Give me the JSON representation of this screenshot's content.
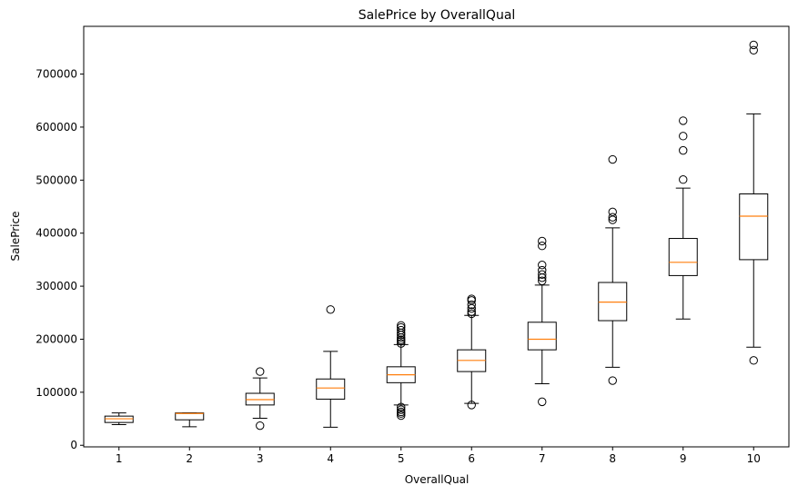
{
  "chart_data": {
    "type": "box",
    "title": "SalePrice by OverallQual",
    "xlabel": "OverallQual",
    "ylabel": "SalePrice",
    "ylim": [
      -3000,
      790000
    ],
    "yticks": [
      0,
      100000,
      200000,
      300000,
      400000,
      500000,
      600000,
      700000
    ],
    "ytick_labels": [
      "0",
      "100000",
      "200000",
      "300000",
      "400000",
      "500000",
      "600000",
      "700000"
    ],
    "categories": [
      "1",
      "2",
      "3",
      "4",
      "5",
      "6",
      "7",
      "8",
      "9",
      "10"
    ],
    "grid": false,
    "colors": {
      "box": "#000000",
      "median": "#ff7f0e"
    },
    "boxes": [
      {
        "category": "1",
        "whisker_low": 39000,
        "q1": 43000,
        "median": 50000,
        "q3": 55000,
        "whisker_high": 61000,
        "fliers": []
      },
      {
        "category": "2",
        "whisker_low": 35000,
        "q1": 48000,
        "median": 60000,
        "q3": 61000,
        "whisker_high": 61000,
        "fliers": []
      },
      {
        "category": "3",
        "whisker_low": 51000,
        "q1": 76000,
        "median": 86000,
        "q3": 98000,
        "whisker_high": 127000,
        "fliers": [
          139000,
          37000
        ]
      },
      {
        "category": "4",
        "whisker_low": 34000,
        "q1": 87000,
        "median": 108000,
        "q3": 125000,
        "whisker_high": 177000,
        "fliers": [
          256000
        ]
      },
      {
        "category": "5",
        "whisker_low": 76000,
        "q1": 118000,
        "median": 133000,
        "q3": 148000,
        "whisker_high": 190000,
        "fliers": [
          226000,
          222000,
          217000,
          212000,
          208000,
          203000,
          199000,
          196000,
          192000,
          72000,
          67000,
          63000,
          60000,
          56000
        ]
      },
      {
        "category": "6",
        "whisker_low": 79000,
        "q1": 139000,
        "median": 160000,
        "q3": 180000,
        "whisker_high": 245000,
        "fliers": [
          276000,
          273000,
          265000,
          258000,
          252000,
          248000,
          76000
        ]
      },
      {
        "category": "7",
        "whisker_low": 116000,
        "q1": 180000,
        "median": 200000,
        "q3": 232000,
        "whisker_high": 302000,
        "fliers": [
          385000,
          376000,
          340000,
          330000,
          322000,
          316000,
          310000,
          82000
        ]
      },
      {
        "category": "8",
        "whisker_low": 147000,
        "q1": 235000,
        "median": 270000,
        "q3": 307000,
        "whisker_high": 410000,
        "fliers": [
          539000,
          440000,
          430000,
          425000,
          122000
        ]
      },
      {
        "category": "9",
        "whisker_low": 238000,
        "q1": 320000,
        "median": 345000,
        "q3": 390000,
        "whisker_high": 485000,
        "fliers": [
          612000,
          583000,
          556000,
          501000
        ]
      },
      {
        "category": "10",
        "whisker_low": 185000,
        "q1": 350000,
        "median": 432000,
        "q3": 474000,
        "whisker_high": 625000,
        "fliers": [
          755000,
          745000,
          160000
        ]
      }
    ]
  }
}
